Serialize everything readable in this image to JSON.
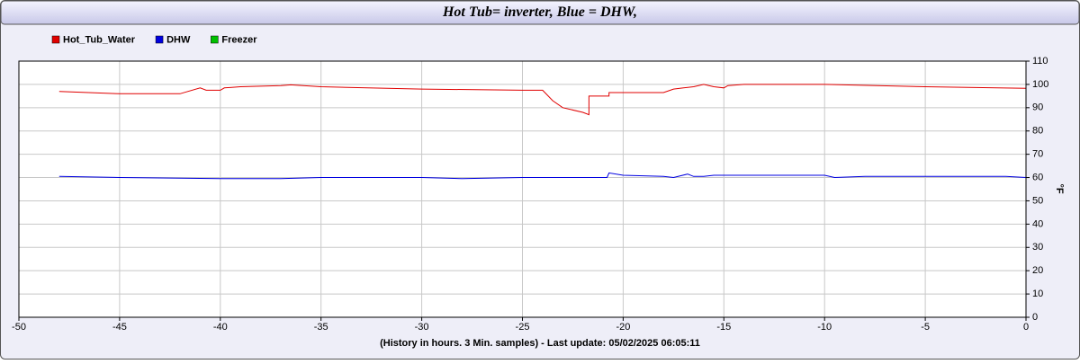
{
  "chart_data": {
    "type": "line",
    "title": "Hot Tub= inverter, Blue = DHW,",
    "xlabel": "(History in hours. 3 Min. samples) - Last update: 05/02/2025 06:05:11",
    "ylabel": "°F",
    "xlim": [
      -50,
      0
    ],
    "xticks": [
      -50,
      -45,
      -40,
      -35,
      -30,
      -25,
      -20,
      -15,
      -10,
      -5,
      0
    ],
    "ylim": [
      0,
      110
    ],
    "yticks": [
      0,
      10,
      20,
      30,
      40,
      50,
      60,
      70,
      80,
      90,
      100,
      110
    ],
    "grid": true,
    "series": [
      {
        "name": "Hot_Tub_Water",
        "color": "#e00000",
        "x": [
          -48,
          -45,
          -42,
          -41,
          -40.7,
          -40,
          -39.8,
          -39,
          -37,
          -36.5,
          -35,
          -30,
          -25,
          -24,
          -23.5,
          -23,
          -22,
          -21.7,
          -21.7,
          -20.7,
          -20.7,
          -18,
          -17.5,
          -17,
          -16.5,
          -16,
          -15.5,
          -15,
          -14.8,
          -14,
          -10,
          -5,
          0
        ],
        "values": [
          97,
          96,
          96,
          98.5,
          97.5,
          97.5,
          98.5,
          99,
          99.5,
          99.8,
          99,
          98,
          97.5,
          97.5,
          93,
          90,
          88,
          87,
          95,
          95,
          96.5,
          96.5,
          98,
          98.5,
          99,
          100,
          99,
          98.5,
          99.5,
          100,
          100,
          99,
          98.3
        ]
      },
      {
        "name": "DHW",
        "color": "#0000e0",
        "x": [
          -48,
          -45,
          -40,
          -37,
          -35,
          -30,
          -28,
          -25,
          -20.8,
          -20.7,
          -20,
          -18,
          -17.5,
          -16.8,
          -16.5,
          -16,
          -15.5,
          -10,
          -9.5,
          -8,
          -1,
          0
        ],
        "values": [
          60.5,
          60,
          59.5,
          59.5,
          60,
          60,
          59.5,
          60,
          60,
          62,
          61,
          60.5,
          60,
          61.5,
          60.5,
          60.5,
          61,
          61,
          60,
          60.5,
          60.5,
          60
        ]
      },
      {
        "name": "Freezer",
        "color": "#00c000",
        "x": [],
        "values": []
      }
    ]
  }
}
